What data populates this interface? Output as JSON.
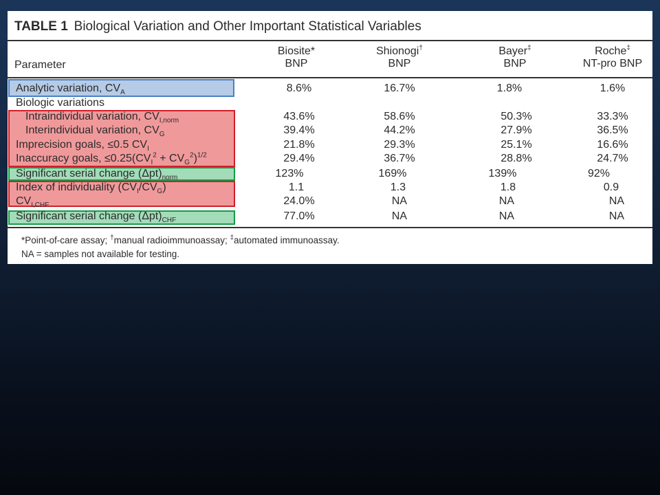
{
  "table": {
    "title_label": "TABLE 1",
    "title_text": "Biological Variation and Other Important Statistical Variables",
    "columns": {
      "parameter": "Parameter",
      "c1": {
        "line1": "Biosite",
        "mark": "*",
        "line2": "BNP"
      },
      "c2": {
        "line1": "Shionogi",
        "mark": "†",
        "line2": "BNP"
      },
      "c3": {
        "line1": "Bayer",
        "mark": "‡",
        "line2": "BNP"
      },
      "c4": {
        "line1": "Roche",
        "mark": "‡",
        "line2": "NT-pro BNP"
      }
    },
    "rows": [
      {
        "label": "Analytic variation, CV",
        "sub": "A",
        "v": [
          "8.6%",
          "16.7%",
          "1.8%",
          "1.6%"
        ]
      },
      {
        "label": "Biologic variations"
      },
      {
        "label": "Intraindividual variation, CV",
        "sub": "I,norm",
        "v": [
          "43.6%",
          "58.6%",
          "50.3%",
          "33.3%"
        ]
      },
      {
        "label": "Interindividual variation, CV",
        "sub": "G",
        "v": [
          "39.4%",
          "44.2%",
          "27.9%",
          "36.5%"
        ]
      },
      {
        "label": "Imprecision goals, ≤0.5 CV",
        "sub": "I",
        "v": [
          "21.8%",
          "29.3%",
          "25.1%",
          "16.6%"
        ]
      },
      {
        "label_a": "Inaccuracy goals, ≤0.25(CV",
        "sub_a": "I",
        "sup_a": "2",
        "label_b": " + CV",
        "sub_b": "G",
        "sup_b": "2",
        "label_c": ")",
        "sup_c": "1/2",
        "v": [
          "29.4%",
          "36.7%",
          "28.8%",
          "24.7%"
        ]
      },
      {
        "label": "Significant serial change (Δpt)",
        "sub": "norm",
        "v": [
          "123%",
          "169%",
          "139%",
          "92%"
        ]
      },
      {
        "label_a": "Index of individuality (CV",
        "sub_a": "I",
        "label_b": "/CV",
        "sub_b": "G",
        "label_c": ")",
        "v": [
          "1.1",
          "1.3",
          "1.8",
          "0.9"
        ]
      },
      {
        "label": "CV",
        "sub": "I,CHF",
        "v": [
          "24.0%",
          "NA",
          "NA",
          "NA"
        ]
      },
      {
        "label": "Significant serial change (Δpt)",
        "sub": "CHF",
        "v": [
          "77.0%",
          "NA",
          "NA",
          "NA"
        ]
      }
    ],
    "footnote1": {
      "a": "*Point-of-care assay; ",
      "m1": "†",
      "b": "manual radioimmunoassay; ",
      "m2": "‡",
      "c": "automated immunoassay."
    },
    "footnote2": "NA = samples not available for testing."
  },
  "highlight_colors": {
    "blue": "#4b7fc4",
    "red": "#d01f2a",
    "green": "#169a47"
  }
}
